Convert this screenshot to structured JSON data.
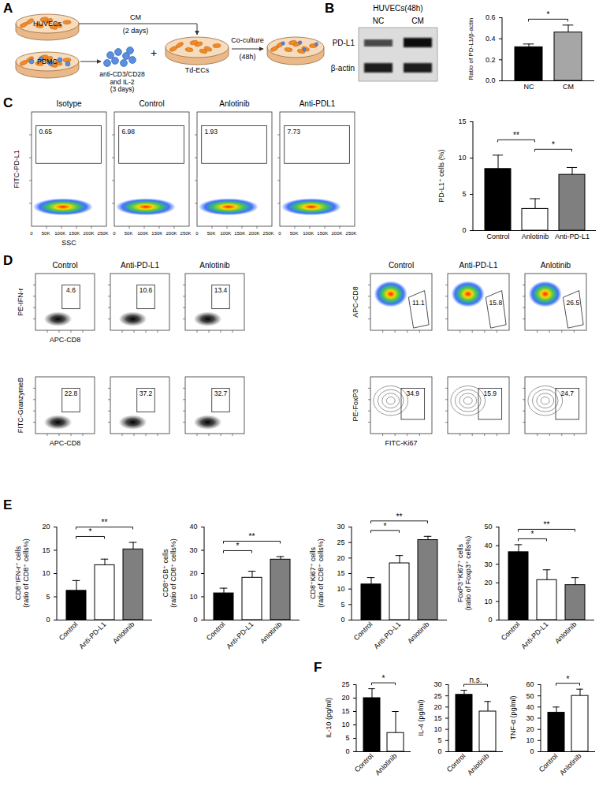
{
  "panel_labels": [
    "A",
    "B",
    "C",
    "D",
    "E",
    "F"
  ],
  "diagram": {
    "huvec": "HUVECs",
    "pbmc": "PBMC",
    "cm": "CM",
    "cm_time": "(2 days)",
    "stim": "anti-CD3/CD28\nand IL-2",
    "stim_time": "(3 days)",
    "plus": "+",
    "td": "Td-ECs",
    "coculture": "Co-culture",
    "coculture_time": "(48h)"
  },
  "blot": {
    "title": "HUVECs(48h)",
    "lanes": [
      "NC",
      "CM"
    ],
    "rows": [
      "PD-L1",
      "β-actin"
    ]
  },
  "flow_panels": [
    {
      "y_label": "FITC-PD-L1",
      "x_label": "SSC",
      "xlim": [
        0,
        262144
      ],
      "xticks": [
        0,
        {
          "value": 50000,
          "label": "50K"
        },
        {
          "value": 100000,
          "label": "100K"
        },
        {
          "value": 150000,
          "label": "150K"
        },
        {
          "value": 200000,
          "label": "200K"
        },
        {
          "value": 250000,
          "label": "250K"
        }
      ],
      "plots": [
        {
          "title": "Isotype",
          "gate_percent": 0.65
        },
        {
          "title": "Control",
          "gate_percent": 6.98
        },
        {
          "title": "Anlotinib",
          "gate_percent": 1.93
        },
        {
          "title": "Anti-PDL1",
          "gate_percent": 7.73
        }
      ]
    },
    {
      "y_label": "PE-IFN-r",
      "x_label": "APC-CD8",
      "plots": [
        {
          "title": "Control",
          "gate_percent": 4.6
        },
        {
          "title": "Anti-PD-L1",
          "gate_percent": 10.6
        },
        {
          "title": "Anlotinib",
          "gate_percent": 13.4
        }
      ]
    },
    {
      "y_label": "FITC-GranzymeB",
      "x_label": "APC-CD8",
      "plots": [
        {
          "gate_percent": 22.8
        },
        {
          "gate_percent": 37.2
        },
        {
          "gate_percent": 32.7
        }
      ]
    },
    {
      "y_label": "APC-CD8",
      "plots": [
        {
          "title": "Control",
          "gate_percent": 11.1
        },
        {
          "title": "Anti-PD-L1",
          "gate_percent": 15.8
        },
        {
          "title": "Anlotinib",
          "gate_percent": 26.5
        }
      ]
    },
    {
      "y_label": "PE-FoxP3",
      "x_label": "FITC-Ki67",
      "plots": [
        {
          "gate_percent": 34.9
        },
        {
          "gate_percent": 15.9
        },
        {
          "gate_percent": 24.7
        }
      ]
    }
  ],
  "chart_data": [
    {
      "type": "bar",
      "categories": [
        "NC",
        "CM"
      ],
      "values": [
        0.32,
        0.46
      ],
      "error": [
        0.03,
        0.07
      ],
      "colors": [
        "#000000",
        "#a6a6a6"
      ],
      "ylim": [
        0,
        0.6
      ],
      "yticks": [
        {
          "value": 0,
          "label": "0.0"
        },
        0.2,
        0.4,
        0.6
      ],
      "y_label": "Ratio of PD-L1/β-actin",
      "significance": [
        {
          "from": "NC",
          "to": "CM",
          "label": "*"
        }
      ]
    },
    {
      "type": "bar",
      "categories": [
        "Control",
        "Anlotinib",
        "Anti-PD-L1"
      ],
      "values": [
        8.5,
        3.0,
        7.7
      ],
      "error": [
        1.9,
        1.4,
        1.0
      ],
      "colors": [
        "#000000",
        "#ffffff",
        "#7f7f7f"
      ],
      "ylim": [
        0,
        15
      ],
      "yticks": [
        0,
        5,
        10,
        15
      ],
      "y_label": "PD-L1⁺ cells (%)",
      "significance": [
        {
          "from": "Anlotinib",
          "to": "Anti-PD-L1",
          "label": "*"
        },
        {
          "from": "Control",
          "to": "Anlotinib",
          "label": "**"
        }
      ]
    },
    {
      "type": "bar",
      "categories": [
        "Control",
        "Anti-PD-L1",
        "Anlotinib"
      ],
      "values": [
        6.3,
        11.8,
        15.2
      ],
      "error": [
        2.2,
        1.3,
        1.5
      ],
      "colors": [
        "#000000",
        "#ffffff",
        "#7f7f7f"
      ],
      "ylim": [
        0,
        20
      ],
      "yticks": [
        0,
        5,
        10,
        15,
        20
      ],
      "y_label": "CD8⁺IFN-r⁺ cells\n(ratio of CD8⁺ cells%)",
      "significance": [
        {
          "from": "Control",
          "to": "Anti-PD-L1",
          "label": "*"
        },
        {
          "from": "Control",
          "to": "Anlotinib",
          "label": "**"
        }
      ]
    },
    {
      "type": "bar",
      "categories": [
        "Control",
        "Anti-PD-L1",
        "Anlotinib"
      ],
      "values": [
        11.5,
        18.2,
        26
      ],
      "error": [
        2.2,
        2.8,
        1.3
      ],
      "colors": [
        "#000000",
        "#ffffff",
        "#7f7f7f"
      ],
      "ylim": [
        0,
        40
      ],
      "yticks": [
        0,
        10,
        20,
        30,
        40
      ],
      "y_label": "CD8⁺GB⁺ cells\n(ratio of CD8⁺ cells%)",
      "significance": [
        {
          "from": "Control",
          "to": "Anti-PD-L1",
          "label": "*"
        },
        {
          "from": "Control",
          "to": "Anlotinib",
          "label": "**"
        }
      ]
    },
    {
      "type": "bar",
      "categories": [
        "Control",
        "Anti-PD-L1",
        "Anlotinib"
      ],
      "values": [
        11.5,
        18.3,
        25.8
      ],
      "error": [
        2.2,
        2.5,
        1.2
      ],
      "colors": [
        "#000000",
        "#ffffff",
        "#7f7f7f"
      ],
      "ylim": [
        0,
        30
      ],
      "yticks": [
        0,
        5,
        10,
        15,
        20,
        25,
        30
      ],
      "y_label": "CD8⁺Ki67⁺ cells\n(ratio of CD8⁺ cells%)",
      "significance": [
        {
          "from": "Control",
          "to": "Anti-PD-L1",
          "label": "*"
        },
        {
          "from": "Control",
          "to": "Anlotinib",
          "label": "**"
        }
      ]
    },
    {
      "type": "bar",
      "categories": [
        "Control",
        "Anti-PD-L1",
        "Anlotinib"
      ],
      "values": [
        36.5,
        21.5,
        18.8
      ],
      "error": [
        4,
        5.5,
        4
      ],
      "colors": [
        "#000000",
        "#ffffff",
        "#7f7f7f"
      ],
      "ylim": [
        0,
        50
      ],
      "yticks": [
        0,
        10,
        20,
        30,
        40,
        50
      ],
      "y_label": "FoxP3⁺Ki67⁺ cells\n(ratio of Foxp3⁺ cells%)",
      "significance": [
        {
          "from": "Control",
          "to": "Anti-PD-L1",
          "label": "*"
        },
        {
          "from": "Control",
          "to": "Anlotinib",
          "label": "**"
        }
      ]
    },
    {
      "type": "bar",
      "categories": [
        "Control",
        "Anlotinib"
      ],
      "values": [
        20,
        7
      ],
      "error": [
        3.5,
        8
      ],
      "colors": [
        "#000000",
        "#ffffff"
      ],
      "ylim": [
        0,
        25
      ],
      "yticks": [
        0,
        5,
        10,
        15,
        20,
        25
      ],
      "y_label": "IL-10 (pg/ml)",
      "significance": [
        {
          "from": "Control",
          "to": "Anlotinib",
          "label": "*"
        }
      ]
    },
    {
      "type": "bar",
      "categories": [
        "Control",
        "Anlotinib"
      ],
      "values": [
        25.5,
        18
      ],
      "error": [
        2,
        4.5
      ],
      "colors": [
        "#000000",
        "#ffffff"
      ],
      "ylim": [
        0,
        30
      ],
      "yticks": [
        0,
        5,
        10,
        15,
        20,
        25,
        30
      ],
      "y_label": "IL-4 (pg/ml)",
      "significance": [
        {
          "from": "Control",
          "to": "Anlotinib",
          "label": "n.s."
        }
      ]
    },
    {
      "type": "bar",
      "categories": [
        "Control",
        "Anlotinib"
      ],
      "values": [
        35,
        50
      ],
      "error": [
        5,
        6
      ],
      "colors": [
        "#000000",
        "#ffffff"
      ],
      "ylim": [
        0,
        60
      ],
      "yticks": [
        0,
        10,
        20,
        30,
        40,
        50,
        60
      ],
      "y_label": "TNF-α (pg/ml)",
      "significance": [
        {
          "from": "Control",
          "to": "Anlotinib",
          "label": "*"
        }
      ]
    }
  ]
}
